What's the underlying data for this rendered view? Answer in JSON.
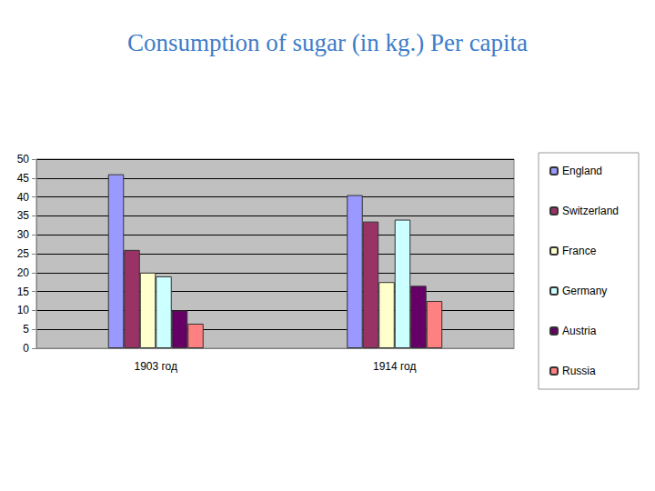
{
  "chart_data": {
    "type": "bar",
    "title": "Consumption of sugar (in kg.) Per capita",
    "categories": [
      "1903 год",
      "1914 год"
    ],
    "series": [
      {
        "name": "England",
        "color": "#9999ff",
        "values": [
          46,
          40.5
        ]
      },
      {
        "name": "Switzerland",
        "color": "#993366",
        "values": [
          26,
          33.5
        ]
      },
      {
        "name": "France",
        "color": "#ffffcc",
        "values": [
          20,
          17.5
        ]
      },
      {
        "name": "Germany",
        "color": "#ccffff",
        "values": [
          19,
          34
        ]
      },
      {
        "name": "Austria",
        "color": "#660066",
        "values": [
          10,
          16.5
        ]
      },
      {
        "name": "Russia",
        "color": "#ff8080",
        "values": [
          6.5,
          12.5
        ]
      }
    ],
    "ylim": [
      0,
      50
    ],
    "yticks": [
      0,
      5,
      10,
      15,
      20,
      25,
      30,
      35,
      40,
      45,
      50
    ],
    "grid": true,
    "legend": "right"
  }
}
